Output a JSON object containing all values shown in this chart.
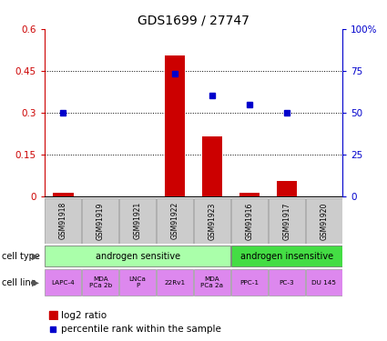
{
  "title": "GDS1699 / 27747",
  "samples": [
    "GSM91918",
    "GSM91919",
    "GSM91921",
    "GSM91922",
    "GSM91923",
    "GSM91916",
    "GSM91917",
    "GSM91920"
  ],
  "log2_ratio": [
    0.012,
    0.0,
    0.0,
    0.505,
    0.215,
    0.012,
    0.055,
    0.0
  ],
  "percentile_rank": [
    50,
    null,
    null,
    73,
    60,
    55,
    50,
    null
  ],
  "ylim_left": [
    0,
    0.6
  ],
  "ylim_right": [
    0,
    100
  ],
  "yticks_left": [
    0,
    0.15,
    0.3,
    0.45,
    0.6
  ],
  "yticks_right": [
    0,
    25,
    50,
    75,
    100
  ],
  "ytick_labels_left": [
    "0",
    "0.15",
    "0.3",
    "0.45",
    "0.6"
  ],
  "ytick_labels_right": [
    "0",
    "25",
    "50",
    "75",
    "100%"
  ],
  "bar_color": "#cc0000",
  "dot_color": "#0000cc",
  "cell_type_groups": [
    {
      "label": "androgen sensitive",
      "start": 0,
      "end": 4,
      "color": "#aaffaa"
    },
    {
      "label": "androgen insensitive",
      "start": 5,
      "end": 7,
      "color": "#44dd44"
    }
  ],
  "cell_lines": [
    "LAPC-4",
    "MDA\nPCa 2b",
    "LNCa\nP",
    "22Rv1",
    "MDA\nPCa 2a",
    "PPC-1",
    "PC-3",
    "DU 145"
  ],
  "cell_line_color": "#dd88ee",
  "sample_bg_color": "#cccccc",
  "title_fontsize": 10,
  "tick_fontsize": 7.5,
  "legend_label_log2": "log2 ratio",
  "legend_label_pct": "percentile rank within the sample"
}
